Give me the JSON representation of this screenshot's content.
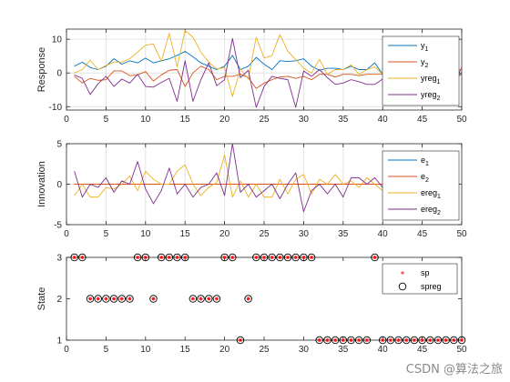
{
  "watermark": "CSDN @算法之旅",
  "colors": {
    "y1": "#0072BD",
    "y2": "#D95319",
    "yreg1": "#EDB120",
    "yreg2": "#7E2F8E",
    "sp": "#FF0000",
    "spreg": "#000000",
    "grid": "#E3E3E3",
    "axis": "#262626"
  },
  "chart_data": [
    {
      "type": "line",
      "title": "",
      "xlabel": "",
      "ylabel": "Response",
      "xlim": [
        0,
        50
      ],
      "ylim": [
        -11,
        13
      ],
      "xticks": [
        0,
        5,
        10,
        15,
        20,
        25,
        30,
        35,
        40,
        45,
        50
      ],
      "yticks": [
        -10,
        0,
        10
      ],
      "grid": true,
      "legend_loc": "top-right",
      "x": [
        1,
        2,
        3,
        4,
        5,
        6,
        7,
        8,
        9,
        10,
        11,
        12,
        13,
        14,
        15,
        16,
        17,
        18,
        19,
        20,
        21,
        22,
        23,
        24,
        25,
        26,
        27,
        28,
        29,
        30,
        31,
        32,
        33,
        34,
        35,
        36,
        37,
        38,
        39,
        40,
        41,
        42,
        43,
        44,
        45,
        46,
        47,
        48,
        49,
        50
      ],
      "series": [
        {
          "name": "y_1",
          "label_main": "y",
          "label_sub": "1",
          "color_key": "y1",
          "values": [
            2.0,
            3.2,
            1.6,
            1.0,
            2.0,
            4.2,
            2.6,
            3.6,
            3.0,
            4.4,
            3.0,
            3.6,
            4.2,
            5.2,
            6.4,
            4.8,
            3.0,
            2.0,
            1.0,
            2.0,
            5.2,
            1.0,
            2.0,
            4.6,
            2.6,
            1.0,
            3.6,
            3.4,
            3.6,
            4.2,
            2.0,
            0.8,
            1.4,
            1.4,
            1.0,
            2.0,
            1.0,
            1.0,
            3.0,
            -0.4,
            -0.4,
            -0.2,
            -0.4,
            -0.4,
            -0.4,
            -0.4,
            -0.4,
            -0.4,
            -0.4,
            -0.4
          ]
        },
        {
          "name": "y_2",
          "label_main": "y",
          "label_sub": "2",
          "color_key": "y2",
          "values": [
            -1.0,
            -3.0,
            -1.6,
            -2.2,
            -2.0,
            0.6,
            0.6,
            -0.8,
            -0.6,
            0.4,
            -2.4,
            -0.6,
            0.8,
            1.0,
            -4.0,
            0.0,
            2.0,
            1.0,
            -2.0,
            -1.0,
            -1.0,
            -0.4,
            -1.4,
            -4.6,
            -3.0,
            -2.0,
            -1.2,
            -1.0,
            -1.6,
            -1.0,
            -2.0,
            -0.4,
            -0.4,
            -1.2,
            -0.4,
            -0.4,
            -0.8,
            -0.4,
            -0.4,
            -0.4,
            -2.0,
            -0.4,
            -1.4,
            -0.4,
            -0.4,
            -1.2,
            -0.4,
            -0.4,
            -1.6,
            -0.4
          ]
        },
        {
          "name": "yreg_1",
          "label_main": "yreg",
          "label_sub": "1",
          "color_key": "yreg1",
          "values": [
            0.0,
            1.0,
            3.8,
            1.0,
            2.2,
            3.2,
            3.2,
            4.2,
            6.2,
            8.2,
            8.6,
            3.4,
            11.8,
            1.8,
            12.6,
            10.6,
            6.2,
            3.2,
            1.2,
            1.6,
            -7.0,
            1.2,
            -1.8,
            10.6,
            4.4,
            5.2,
            11.4,
            6.4,
            4.0,
            1.4,
            0.0,
            4.0,
            -0.4,
            1.0,
            1.0,
            2.4,
            -0.4,
            1.0,
            1.8,
            -0.4,
            1.0,
            1.0,
            0.8,
            1.0,
            1.0,
            1.0,
            1.0,
            1.0,
            1.0,
            1.0
          ]
        },
        {
          "name": "yreg_2",
          "label_main": "yreg",
          "label_sub": "2",
          "color_key": "yreg2",
          "values": [
            -0.6,
            -1.6,
            -6.4,
            -3.2,
            -1.0,
            -4.0,
            -1.8,
            -3.0,
            -0.4,
            -4.0,
            -4.2,
            -2.8,
            -1.6,
            -8.4,
            3.6,
            -8.4,
            -2.0,
            3.0,
            -3.8,
            -2.0,
            10.2,
            -1.4,
            0.8,
            -10.2,
            -4.0,
            -1.0,
            -1.6,
            -2.0,
            -10.2,
            0.6,
            -1.0,
            1.0,
            -1.4,
            -3.4,
            -3.0,
            -2.0,
            -2.6,
            -3.4,
            -3.4,
            -1.8,
            -3.6,
            -3.4,
            -3.4,
            -3.6,
            -3.4,
            -3.4,
            -3.4,
            -3.4,
            -3.0,
            1.6
          ]
        }
      ]
    },
    {
      "type": "line",
      "title": "",
      "xlabel": "",
      "ylabel": "Innovation",
      "xlim": [
        0,
        50
      ],
      "ylim": [
        -5,
        5
      ],
      "xticks": [
        0,
        5,
        10,
        15,
        20,
        25,
        30,
        35,
        40,
        45,
        50
      ],
      "yticks": [
        -5,
        0,
        5
      ],
      "grid": true,
      "legend_loc": "top-right",
      "x": [
        1,
        2,
        3,
        4,
        5,
        6,
        7,
        8,
        9,
        10,
        11,
        12,
        13,
        14,
        15,
        16,
        17,
        18,
        19,
        20,
        21,
        22,
        23,
        24,
        25,
        26,
        27,
        28,
        29,
        30,
        31,
        32,
        33,
        34,
        35,
        36,
        37,
        38,
        39,
        40,
        41,
        42,
        43,
        44,
        45,
        46,
        47,
        48,
        49,
        50
      ],
      "series": [
        {
          "name": "e_1",
          "label_main": "e",
          "label_sub": "1",
          "color_key": "y1",
          "values": [
            0,
            0,
            0,
            0,
            0,
            0,
            0,
            0,
            0,
            0,
            0,
            0,
            0,
            0,
            0,
            0,
            0,
            0,
            0,
            0,
            0,
            0,
            0,
            0,
            0,
            0,
            0,
            0,
            0,
            0,
            0,
            0,
            0,
            0,
            0,
            0,
            0,
            0,
            0,
            0,
            0,
            0,
            0,
            0,
            0,
            0,
            0,
            0,
            0,
            0
          ]
        },
        {
          "name": "e_2",
          "label_main": "e",
          "label_sub": "2",
          "color_key": "y2",
          "values": [
            0,
            0,
            0,
            0,
            0,
            0,
            0,
            0,
            0,
            0,
            0,
            0,
            0,
            0,
            0,
            0,
            0,
            0,
            0,
            0,
            0,
            0,
            0,
            0,
            0,
            0,
            0,
            0,
            0,
            0,
            0,
            0,
            0,
            0,
            0,
            0,
            0,
            0,
            0,
            0,
            0,
            0,
            0,
            0,
            0,
            0,
            0,
            0,
            0,
            0
          ]
        },
        {
          "name": "ereg_1",
          "label_main": "ereg",
          "label_sub": "1",
          "color_key": "yreg1",
          "values": [
            -1.4,
            0.0,
            -1.6,
            -1.6,
            -0.4,
            -0.6,
            0.0,
            1.0,
            -0.8,
            1.6,
            0.6,
            0.0,
            0.0,
            1.6,
            2.4,
            0.0,
            -1.4,
            -0.4,
            0.2,
            3.6,
            -1.6,
            0.4,
            -1.6,
            0.0,
            -1.6,
            -1.6,
            0.6,
            -1.2,
            0.6,
            1.2,
            -1.2,
            0.6,
            0.0,
            1.2,
            0.0,
            0.4,
            -0.4,
            0.8,
            0.0,
            -0.8,
            0.0,
            -1.6,
            0.0,
            0.0,
            0.0,
            0.0,
            0.0,
            0.0,
            0.0,
            0.0
          ]
        },
        {
          "name": "ereg_2",
          "label_main": "ereg",
          "label_sub": "2",
          "color_key": "yreg2",
          "values": [
            1.6,
            -1.6,
            0.0,
            -0.4,
            0.8,
            -1.0,
            0.4,
            0.0,
            2.8,
            -0.6,
            -2.4,
            -0.8,
            2.0,
            -1.2,
            0.0,
            -1.6,
            -0.4,
            0.0,
            1.4,
            -1.4,
            5.0,
            -1.0,
            0.0,
            -1.6,
            -0.8,
            0.0,
            -1.8,
            0.0,
            1.4,
            -3.4,
            -0.8,
            0.0,
            -1.2,
            0.0,
            -1.6,
            0.8,
            0.8,
            0.0,
            0.8,
            -0.4,
            0.0,
            0.0,
            0.0,
            0.0,
            0.0,
            0.0,
            0.0,
            0.0,
            0.0,
            0.0
          ]
        }
      ]
    },
    {
      "type": "scatter",
      "title": "",
      "xlabel": "",
      "ylabel": "State",
      "xlim": [
        0,
        50
      ],
      "ylim": [
        1,
        3
      ],
      "xticks": [
        0,
        5,
        10,
        15,
        20,
        25,
        30,
        35,
        40,
        45,
        50
      ],
      "yticks": [
        1,
        2,
        3
      ],
      "grid": false,
      "legend_loc": "top-right",
      "x": [
        1,
        2,
        3,
        4,
        5,
        6,
        7,
        8,
        9,
        10,
        11,
        12,
        13,
        14,
        15,
        16,
        17,
        18,
        19,
        20,
        21,
        22,
        23,
        24,
        25,
        26,
        27,
        28,
        29,
        30,
        31,
        32,
        33,
        34,
        35,
        36,
        37,
        38,
        39,
        40,
        41,
        42,
        43,
        44,
        45,
        46,
        47,
        48,
        49,
        50
      ],
      "series": [
        {
          "name": "sp",
          "label_main": "sp",
          "label_sub": "",
          "color_key": "sp",
          "marker": "*",
          "values": [
            3,
            3,
            2,
            2,
            2,
            2,
            2,
            2,
            3,
            3,
            2,
            3,
            3,
            3,
            3,
            2,
            2,
            2,
            2,
            3,
            3,
            1,
            2,
            3,
            3,
            3,
            3,
            3,
            3,
            3,
            3,
            1,
            1,
            1,
            1,
            1,
            1,
            1,
            3,
            1,
            1,
            1,
            1,
            1,
            1,
            1,
            1,
            1,
            1,
            1
          ]
        },
        {
          "name": "spreg",
          "label_main": "spreg",
          "label_sub": "",
          "color_key": "spreg",
          "marker": "o",
          "values": [
            3,
            3,
            2,
            2,
            2,
            2,
            2,
            2,
            3,
            3,
            2,
            3,
            3,
            3,
            3,
            2,
            2,
            2,
            2,
            3,
            3,
            1,
            2,
            3,
            3,
            3,
            3,
            3,
            3,
            3,
            3,
            1,
            1,
            1,
            1,
            1,
            1,
            1,
            3,
            1,
            1,
            1,
            1,
            1,
            1,
            1,
            1,
            1,
            1,
            1
          ]
        }
      ]
    }
  ]
}
